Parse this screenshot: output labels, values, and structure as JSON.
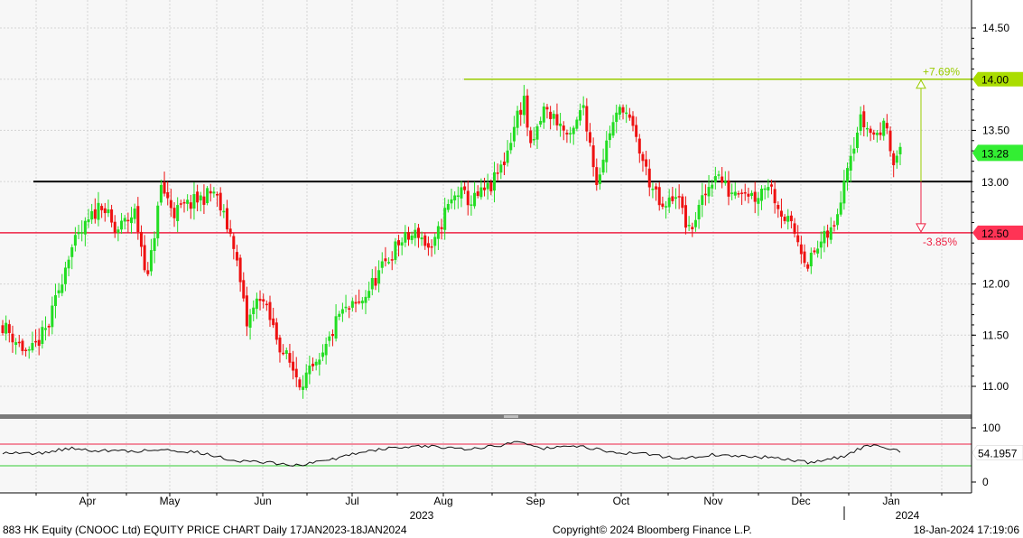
{
  "footer": {
    "left": "883 HK Equity (CNOOC Ltd) EQUITY PRICE CHART  Daily 17JAN2023-18JAN2024",
    "center": "Copyright© 2024 Bloomberg Finance L.P.",
    "right": "18-Jan-2024 17:19:06"
  },
  "chart_data": {
    "type": "candlestick",
    "title": "",
    "xlabel": "",
    "ylabel": "",
    "ylim": [
      10.7,
      14.75
    ],
    "yticks": [
      "11.00",
      "11.50",
      "12.00",
      "12.50",
      "13.00",
      "13.50",
      "14.00",
      "14.50"
    ],
    "x_month_labels": [
      "Apr",
      "May",
      "Jun",
      "Jul",
      "Aug",
      "Sep",
      "Oct",
      "Nov",
      "Dec",
      "Jan"
    ],
    "x_year_labels": [
      "2023",
      "2024"
    ],
    "grid": true,
    "up_color": "#22dd22",
    "down_color": "#ee1111",
    "anchors": [
      [
        0,
        11.6
      ],
      [
        8,
        11.3
      ],
      [
        14,
        11.6
      ],
      [
        20,
        12.3
      ],
      [
        26,
        12.6
      ],
      [
        30,
        12.8
      ],
      [
        34,
        12.5
      ],
      [
        40,
        12.7
      ],
      [
        44,
        12.05
      ],
      [
        48,
        12.95
      ],
      [
        52,
        12.7
      ],
      [
        58,
        12.8
      ],
      [
        64,
        12.9
      ],
      [
        70,
        12.4
      ],
      [
        74,
        11.6
      ],
      [
        78,
        11.9
      ],
      [
        84,
        11.4
      ],
      [
        90,
        11.05
      ],
      [
        96,
        11.2
      ],
      [
        102,
        11.7
      ],
      [
        108,
        11.8
      ],
      [
        114,
        12.1
      ],
      [
        120,
        12.4
      ],
      [
        126,
        12.5
      ],
      [
        130,
        12.3
      ],
      [
        134,
        12.7
      ],
      [
        138,
        12.9
      ],
      [
        142,
        12.8
      ],
      [
        148,
        12.95
      ],
      [
        152,
        13.2
      ],
      [
        156,
        13.65
      ],
      [
        158,
        13.8
      ],
      [
        160,
        13.3
      ],
      [
        164,
        13.7
      ],
      [
        168,
        13.6
      ],
      [
        172,
        13.4
      ],
      [
        176,
        13.75
      ],
      [
        180,
        13.0
      ],
      [
        184,
        13.5
      ],
      [
        188,
        13.75
      ],
      [
        192,
        13.4
      ],
      [
        196,
        13.0
      ],
      [
        200,
        12.7
      ],
      [
        204,
        12.9
      ],
      [
        208,
        12.5
      ],
      [
        212,
        12.8
      ],
      [
        216,
        13.1
      ],
      [
        220,
        12.9
      ],
      [
        224,
        12.95
      ],
      [
        228,
        12.85
      ],
      [
        232,
        13.0
      ],
      [
        236,
        12.7
      ],
      [
        240,
        12.5
      ],
      [
        244,
        12.2
      ],
      [
        248,
        12.4
      ],
      [
        252,
        12.55
      ],
      [
        256,
        13.2
      ],
      [
        260,
        13.6
      ],
      [
        264,
        13.45
      ],
      [
        268,
        13.55
      ],
      [
        270,
        13.2
      ],
      [
        272,
        13.28
      ]
    ],
    "levels": [
      {
        "value": 14.0,
        "label": "14.00",
        "color": "#99cc00"
      },
      {
        "value": 13.0,
        "label": "13.00",
        "color": "#000000"
      },
      {
        "value": 12.5,
        "label": "12.50",
        "color": "#ee2244"
      }
    ],
    "last_price": {
      "value": 13.28,
      "label": "13.28",
      "color": "#33ee33"
    },
    "annotations": {
      "up": "+7.69%",
      "down": "-3.85%"
    },
    "rsi": {
      "yticks": [
        "100",
        "0"
      ],
      "upper": 70,
      "lower": 30,
      "last_label": "54.1957",
      "anchors": [
        [
          0,
          55
        ],
        [
          10,
          52
        ],
        [
          20,
          62
        ],
        [
          30,
          58
        ],
        [
          40,
          57
        ],
        [
          50,
          60
        ],
        [
          60,
          54
        ],
        [
          70,
          40
        ],
        [
          80,
          36
        ],
        [
          90,
          31
        ],
        [
          100,
          42
        ],
        [
          110,
          58
        ],
        [
          120,
          64
        ],
        [
          130,
          66
        ],
        [
          140,
          62
        ],
        [
          150,
          66
        ],
        [
          157,
          76
        ],
        [
          163,
          62
        ],
        [
          175,
          66
        ],
        [
          185,
          55
        ],
        [
          195,
          52
        ],
        [
          205,
          43
        ],
        [
          215,
          50
        ],
        [
          225,
          47
        ],
        [
          235,
          45
        ],
        [
          245,
          35
        ],
        [
          255,
          48
        ],
        [
          262,
          68
        ],
        [
          267,
          64
        ],
        [
          272,
          57
        ]
      ]
    }
  }
}
